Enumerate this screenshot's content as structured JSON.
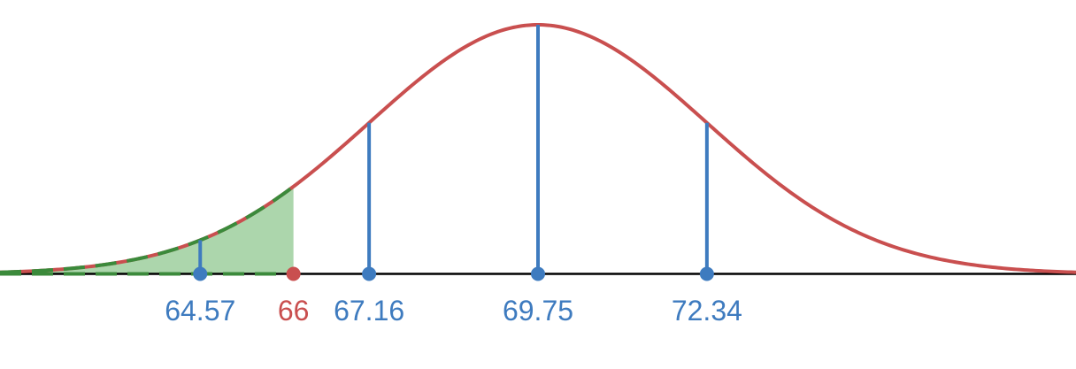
{
  "chart_data": {
    "type": "area",
    "distribution": "normal",
    "mean": 69.75,
    "sd": 2.59,
    "x_range": [
      61.5,
      78.0
    ],
    "markers": [
      {
        "x": 64.57,
        "label": "64.57",
        "color": "#3e7bbf"
      },
      {
        "x": 67.16,
        "label": "67.16",
        "color": "#3e7bbf"
      },
      {
        "x": 69.75,
        "label": "69.75",
        "color": "#3e7bbf"
      },
      {
        "x": 72.34,
        "label": "72.34",
        "color": "#3e7bbf"
      }
    ],
    "highlight": {
      "x": 66,
      "label": "66",
      "color": "#c94f4f",
      "shaded_region": "x <= 66"
    },
    "colors": {
      "curve": "#c94f4f",
      "shade": "#a8d4a8",
      "shade_edge": "#3b8a3b",
      "axis": "#000000"
    },
    "grid": false
  }
}
